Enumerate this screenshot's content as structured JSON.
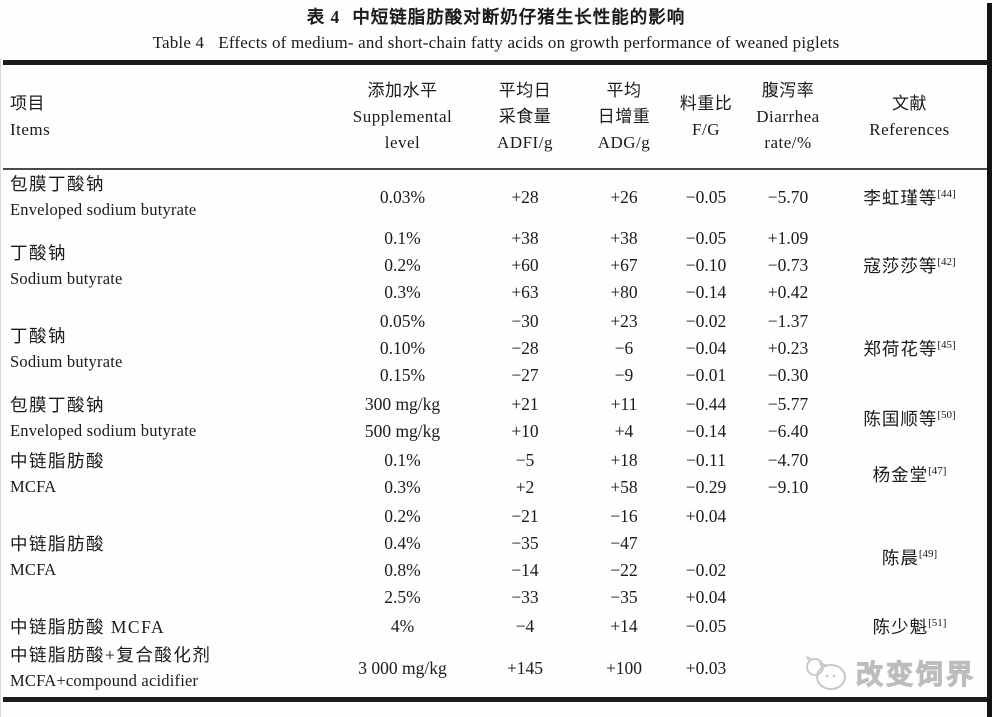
{
  "title": {
    "zh_label": "表 4",
    "zh_text": "中短链脂肪酸对断奶仔猪生长性能的影响",
    "en_label": "Table 4",
    "en_text": "Effects of medium- and short-chain fatty acids on growth performance of weaned piglets"
  },
  "table": {
    "columns": [
      {
        "id": "items",
        "lines": [
          "项目",
          "Items"
        ]
      },
      {
        "id": "level",
        "lines": [
          "添加水平",
          "Supplemental",
          "level"
        ]
      },
      {
        "id": "adfi",
        "lines": [
          "平均日",
          "采食量",
          "ADFI/g"
        ]
      },
      {
        "id": "adg",
        "lines": [
          "平均",
          "日增重",
          "ADG/g"
        ]
      },
      {
        "id": "fg",
        "lines": [
          "料重比",
          "F/G"
        ]
      },
      {
        "id": "diarrhea",
        "lines": [
          "腹泻率",
          "Diarrhea",
          "rate/%"
        ]
      },
      {
        "id": "refs",
        "lines": [
          "文献",
          "References"
        ]
      }
    ],
    "groups": [
      {
        "item_lines": [
          "包膜丁酸钠",
          "Enveloped sodium butyrate"
        ],
        "ref": "李虹瑾等",
        "ref_sup": "[44]",
        "rows": [
          {
            "level": "0.03%",
            "adfi": "+28",
            "adg": "+26",
            "fg": "−0.05",
            "diarrhea": "−5.70"
          }
        ]
      },
      {
        "item_lines": [
          "丁酸钠",
          "Sodium butyrate"
        ],
        "ref": "寇莎莎等",
        "ref_sup": "[42]",
        "rows": [
          {
            "level": "0.1%",
            "adfi": "+38",
            "adg": "+38",
            "fg": "−0.05",
            "diarrhea": "+1.09"
          },
          {
            "level": "0.2%",
            "adfi": "+60",
            "adg": "+67",
            "fg": "−0.10",
            "diarrhea": "−0.73"
          },
          {
            "level": "0.3%",
            "adfi": "+63",
            "adg": "+80",
            "fg": "−0.14",
            "diarrhea": "+0.42"
          }
        ]
      },
      {
        "item_lines": [
          "丁酸钠",
          "Sodium butyrate"
        ],
        "ref": "郑荷花等",
        "ref_sup": "[45]",
        "rows": [
          {
            "level": "0.05%",
            "adfi": "−30",
            "adg": "+23",
            "fg": "−0.02",
            "diarrhea": "−1.37"
          },
          {
            "level": "0.10%",
            "adfi": "−28",
            "adg": "−6",
            "fg": "−0.04",
            "diarrhea": "+0.23"
          },
          {
            "level": "0.15%",
            "adfi": "−27",
            "adg": "−9",
            "fg": "−0.01",
            "diarrhea": "−0.30"
          }
        ]
      },
      {
        "item_lines": [
          "包膜丁酸钠",
          "Enveloped sodium butyrate"
        ],
        "ref": "陈国顺等",
        "ref_sup": "[50]",
        "rows": [
          {
            "level": "300 mg/kg",
            "adfi": "+21",
            "adg": "+11",
            "fg": "−0.44",
            "diarrhea": "−5.77"
          },
          {
            "level": "500 mg/kg",
            "adfi": "+10",
            "adg": "+4",
            "fg": "−0.14",
            "diarrhea": "−6.40"
          }
        ]
      },
      {
        "item_lines": [
          "中链脂肪酸",
          "MCFA"
        ],
        "ref": "杨金堂",
        "ref_sup": "[47]",
        "rows": [
          {
            "level": "0.1%",
            "adfi": "−5",
            "adg": "+18",
            "fg": "−0.11",
            "diarrhea": "−4.70"
          },
          {
            "level": "0.3%",
            "adfi": "+2",
            "adg": "+58",
            "fg": "−0.29",
            "diarrhea": "−9.10"
          }
        ]
      },
      {
        "item_lines": [
          "中链脂肪酸",
          "MCFA"
        ],
        "ref": "陈晨",
        "ref_sup": "[49]",
        "rows": [
          {
            "level": "0.2%",
            "adfi": "−21",
            "adg": "−16",
            "fg": "+0.04",
            "diarrhea": ""
          },
          {
            "level": "0.4%",
            "adfi": "−35",
            "adg": "−47",
            "fg": "",
            "diarrhea": ""
          },
          {
            "level": "0.8%",
            "adfi": "−14",
            "adg": "−22",
            "fg": "−0.02",
            "diarrhea": ""
          },
          {
            "level": "2.5%",
            "adfi": "−33",
            "adg": "−35",
            "fg": "+0.04",
            "diarrhea": ""
          }
        ]
      },
      {
        "item_lines": [
          "中链脂肪酸 MCFA"
        ],
        "ref": "陈少魁",
        "ref_sup": "[51]",
        "rows": [
          {
            "level": "4%",
            "adfi": "−4",
            "adg": "+14",
            "fg": "−0.05",
            "diarrhea": ""
          }
        ]
      },
      {
        "item_lines": [
          "中链脂肪酸+复合酸化剂",
          "MCFA+compound acidifier"
        ],
        "ref": "",
        "ref_sup": "",
        "rows": [
          {
            "level": "3 000 mg/kg",
            "adfi": "+145",
            "adg": "+100",
            "fg": "+0.03",
            "diarrhea": ""
          }
        ]
      }
    ]
  },
  "watermark": {
    "text": "改变饲界",
    "logo": "chat-bubbles-pig-logo"
  }
}
